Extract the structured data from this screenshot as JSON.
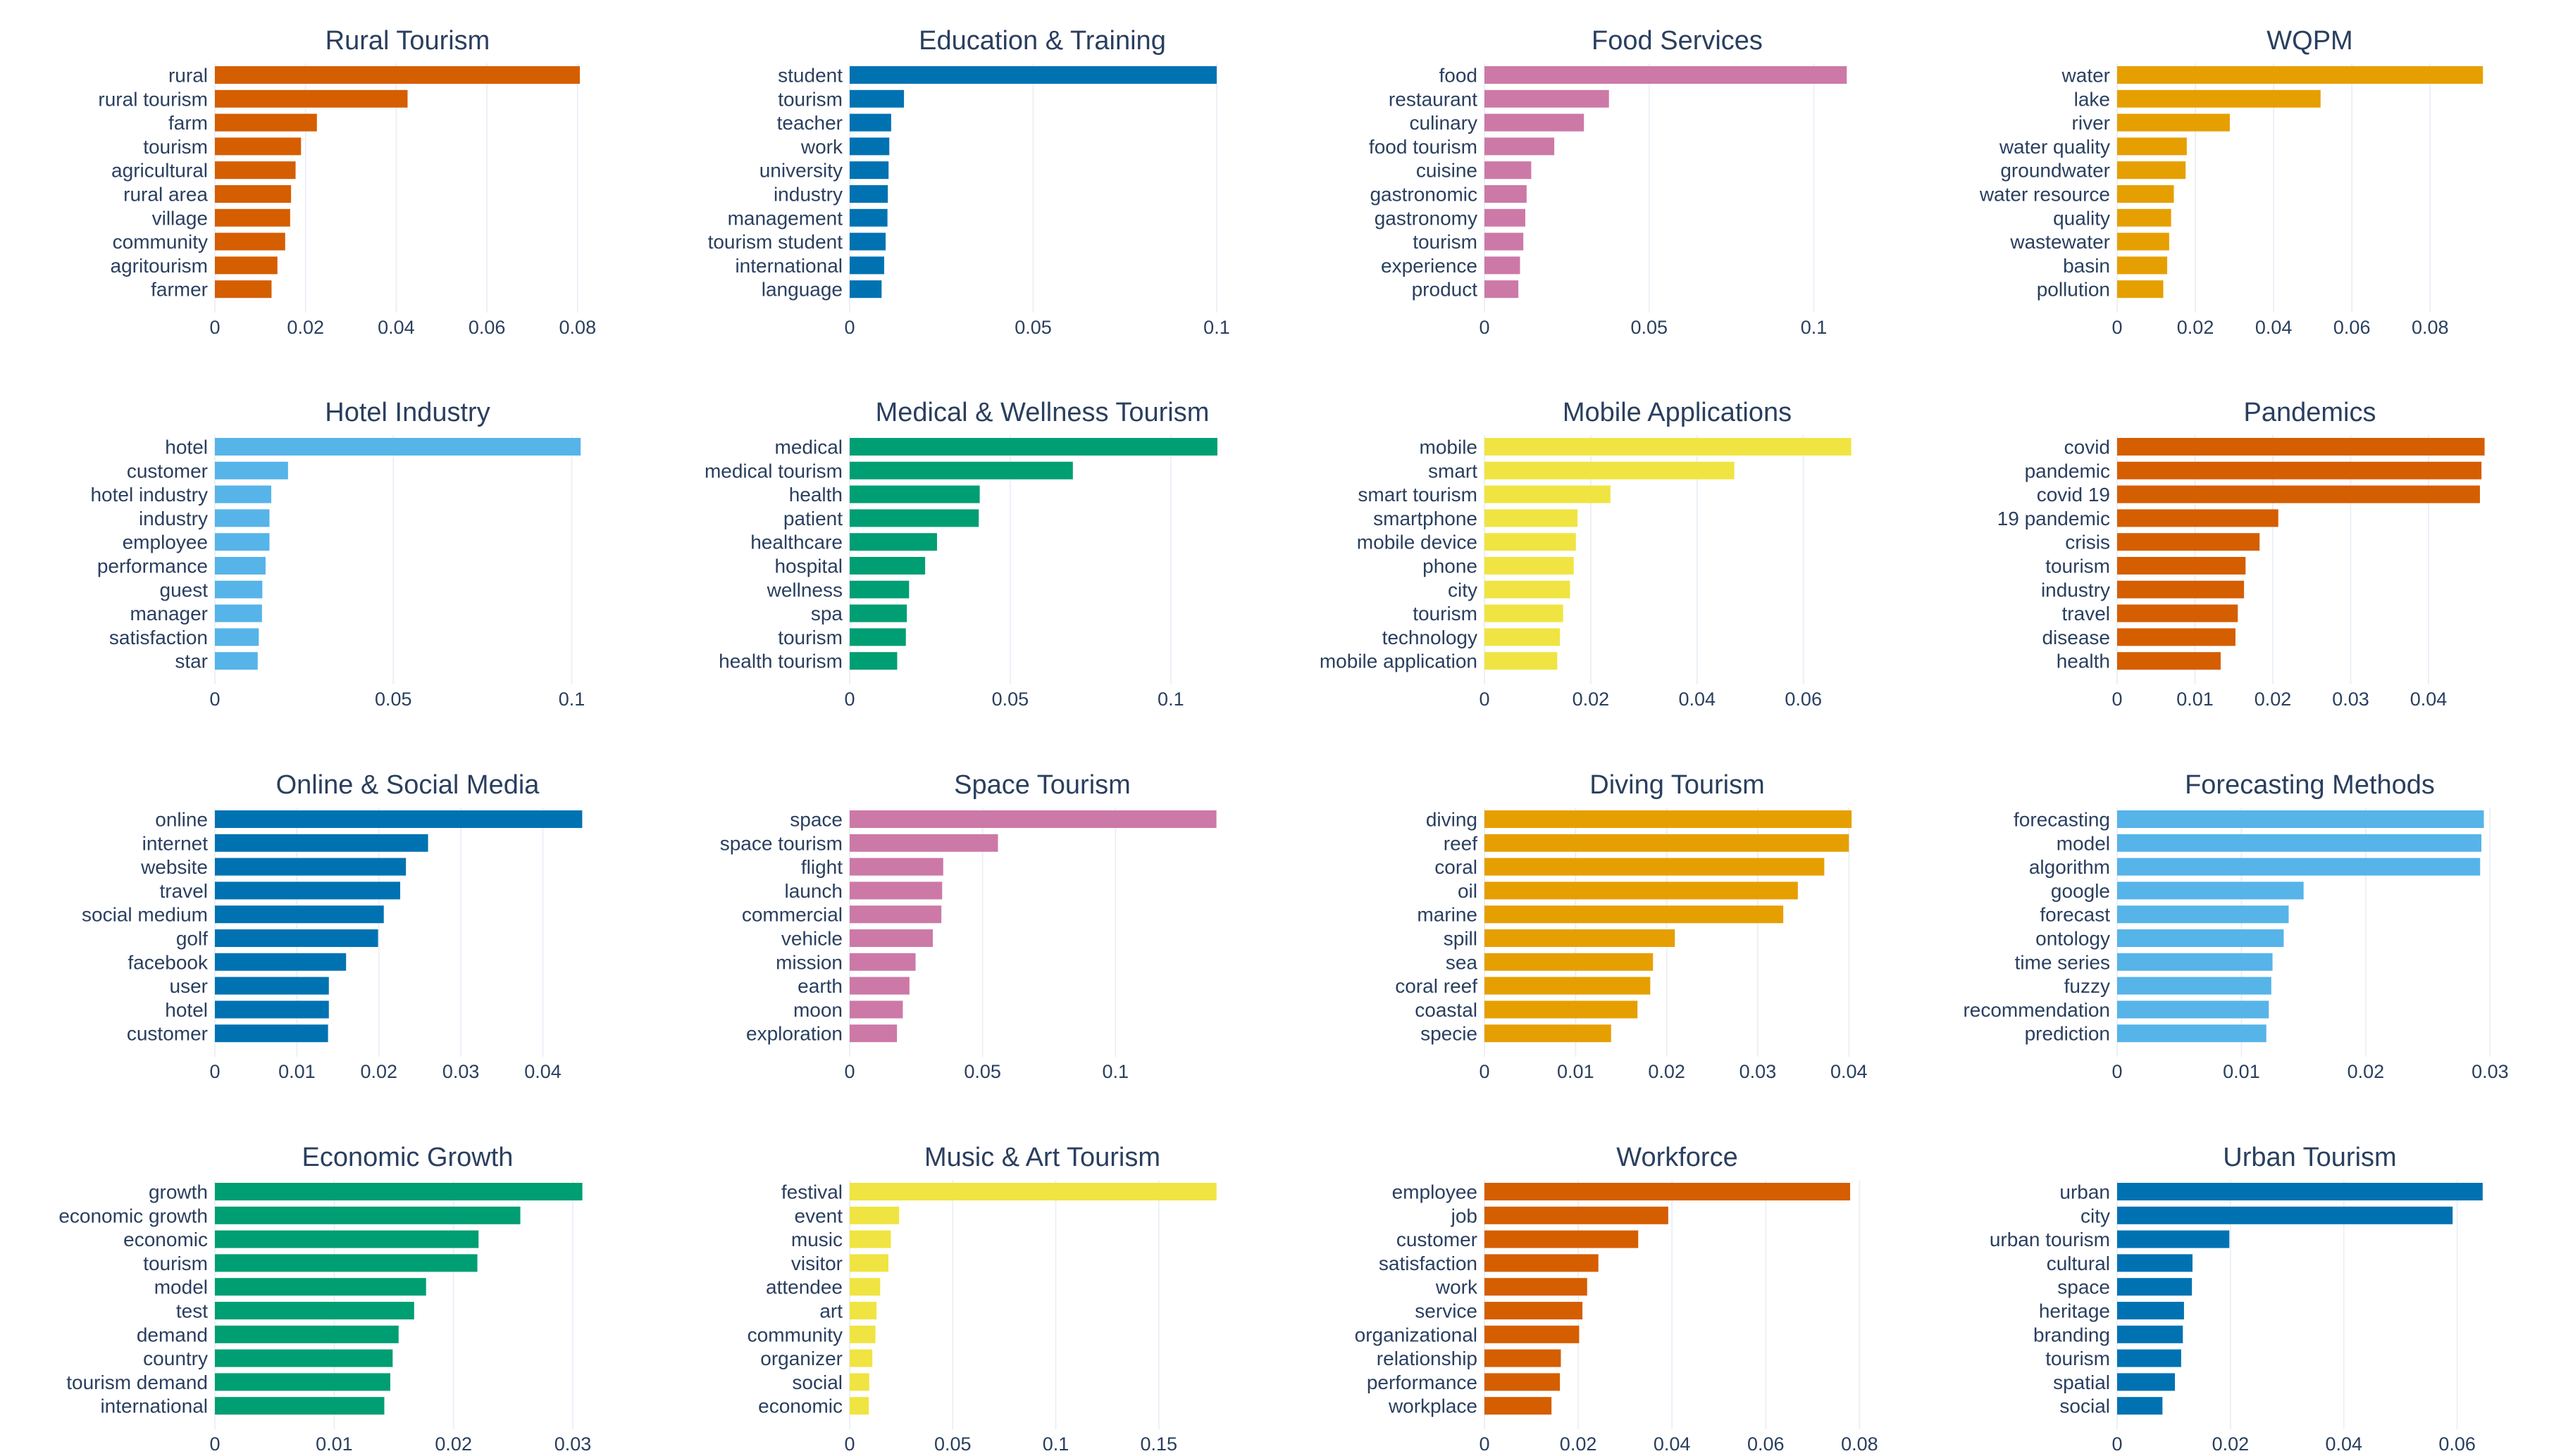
{
  "chart_data": [
    {
      "type": "bar",
      "title": "Rural Tourism",
      "color": "#d55e00",
      "categories": [
        "rural",
        "rural tourism",
        "farm",
        "tourism",
        "agricultural",
        "rural area",
        "village",
        "community",
        "agritourism",
        "farmer"
      ],
      "values": [
        0.0805,
        0.0425,
        0.0225,
        0.019,
        0.0178,
        0.0168,
        0.0166,
        0.0155,
        0.0138,
        0.0125
      ],
      "xlim": [
        0,
        0.085
      ],
      "ticks": [
        0,
        0.02,
        0.04,
        0.06,
        0.08
      ],
      "tick_labels": [
        "0",
        "0.02",
        "0.04",
        "0.06",
        "0.08"
      ]
    },
    {
      "type": "bar",
      "title": "Education & Training",
      "color": "#0072b2",
      "categories": [
        "student",
        "tourism",
        "teacher",
        "work",
        "university",
        "industry",
        "management",
        "tourism student",
        "international",
        "language"
      ],
      "values": [
        0.1,
        0.0148,
        0.0113,
        0.0108,
        0.0106,
        0.0104,
        0.0103,
        0.0098,
        0.0094,
        0.0087
      ],
      "xlim": [
        0,
        0.105
      ],
      "ticks": [
        0,
        0.05,
        0.1
      ],
      "tick_labels": [
        "0",
        "0.05",
        "0.1"
      ]
    },
    {
      "type": "bar",
      "title": "Food Services",
      "color": "#cc79a7",
      "categories": [
        "food",
        "restaurant",
        "culinary",
        "food tourism",
        "cuisine",
        "gastronomic",
        "gastronomy",
        "tourism",
        "experience",
        "product"
      ],
      "values": [
        0.11,
        0.0378,
        0.0302,
        0.0212,
        0.0142,
        0.0128,
        0.0124,
        0.0118,
        0.0108,
        0.0103
      ],
      "xlim": [
        0,
        0.117
      ],
      "ticks": [
        0,
        0.05,
        0.1
      ],
      "tick_labels": [
        "0",
        "0.05",
        "0.1"
      ]
    },
    {
      "type": "bar",
      "title": "WQPM",
      "color": "#e69f00",
      "categories": [
        "water",
        "lake",
        "river",
        "water quality",
        "groundwater",
        "water resource",
        "quality",
        "wastewater",
        "basin",
        "pollution"
      ],
      "values": [
        0.0935,
        0.052,
        0.0288,
        0.0178,
        0.0175,
        0.0145,
        0.0138,
        0.0133,
        0.0128,
        0.0118
      ],
      "xlim": [
        0,
        0.0985
      ],
      "ticks": [
        0,
        0.02,
        0.04,
        0.06,
        0.08
      ],
      "tick_labels": [
        "0",
        "0.02",
        "0.04",
        "0.06",
        "0.08"
      ]
    },
    {
      "type": "bar",
      "title": "Hotel Industry",
      "color": "#56b4e9",
      "categories": [
        "hotel",
        "customer",
        "hotel industry",
        "industry",
        "employee",
        "performance",
        "guest",
        "manager",
        "satisfaction",
        "star"
      ],
      "values": [
        0.1025,
        0.0205,
        0.0158,
        0.0153,
        0.0153,
        0.0142,
        0.0133,
        0.0132,
        0.0123,
        0.012
      ],
      "xlim": [
        0,
        0.108
      ],
      "ticks": [
        0,
        0.05,
        0.1
      ],
      "tick_labels": [
        "0",
        "0.05",
        "0.1"
      ]
    },
    {
      "type": "bar",
      "title": "Medical & Wellness Tourism",
      "color": "#009e73",
      "categories": [
        "medical",
        "medical tourism",
        "health",
        "patient",
        "healthcare",
        "hospital",
        "wellness",
        "spa",
        "tourism",
        "health tourism"
      ],
      "values": [
        0.1145,
        0.0695,
        0.0405,
        0.0402,
        0.0272,
        0.0235,
        0.0185,
        0.0178,
        0.0175,
        0.0148
      ],
      "xlim": [
        0,
        0.12
      ],
      "ticks": [
        0,
        0.05,
        0.1
      ],
      "tick_labels": [
        "0",
        "0.05",
        "0.1"
      ]
    },
    {
      "type": "bar",
      "title": "Mobile Applications",
      "color": "#f0e442",
      "categories": [
        "mobile",
        "smart",
        "smart tourism",
        "smartphone",
        "mobile device",
        "phone",
        "city",
        "tourism",
        "technology",
        "mobile application"
      ],
      "values": [
        0.069,
        0.047,
        0.0237,
        0.0175,
        0.0172,
        0.0168,
        0.0161,
        0.0148,
        0.0142,
        0.0137
      ],
      "xlim": [
        0,
        0.0725
      ],
      "ticks": [
        0,
        0.02,
        0.04,
        0.06
      ],
      "tick_labels": [
        "0",
        "0.02",
        "0.04",
        "0.06"
      ]
    },
    {
      "type": "bar",
      "title": "Pandemics",
      "color": "#d55e00",
      "categories": [
        "covid",
        "pandemic",
        "covid 19",
        "19 pandemic",
        "crisis",
        "tourism",
        "industry",
        "travel",
        "disease",
        "health"
      ],
      "values": [
        0.0472,
        0.0468,
        0.0466,
        0.0207,
        0.0183,
        0.0165,
        0.0163,
        0.0155,
        0.0152,
        0.0133
      ],
      "xlim": [
        0,
        0.0495
      ],
      "ticks": [
        0,
        0.01,
        0.02,
        0.03,
        0.04
      ],
      "tick_labels": [
        "0",
        "0.01",
        "0.02",
        "0.03",
        "0.04"
      ]
    },
    {
      "type": "bar",
      "title": "Online & Social Media",
      "color": "#0072b2",
      "categories": [
        "online",
        "internet",
        "website",
        "travel",
        "social medium",
        "golf",
        "facebook",
        "user",
        "hotel",
        "customer"
      ],
      "values": [
        0.0448,
        0.026,
        0.0233,
        0.0226,
        0.0206,
        0.0199,
        0.016,
        0.0139,
        0.0139,
        0.0138
      ],
      "xlim": [
        0,
        0.047
      ],
      "ticks": [
        0,
        0.01,
        0.02,
        0.03,
        0.04
      ],
      "tick_labels": [
        "0",
        "0.01",
        "0.02",
        "0.03",
        "0.04"
      ]
    },
    {
      "type": "bar",
      "title": "Space Tourism",
      "color": "#cc79a7",
      "categories": [
        "space",
        "space tourism",
        "flight",
        "launch",
        "commercial",
        "vehicle",
        "mission",
        "earth",
        "moon",
        "exploration"
      ],
      "values": [
        0.138,
        0.0558,
        0.0352,
        0.0348,
        0.0345,
        0.0313,
        0.0248,
        0.0225,
        0.02,
        0.0178
      ],
      "xlim": [
        0,
        0.145
      ],
      "ticks": [
        0,
        0.05,
        0.1
      ],
      "tick_labels": [
        "0",
        "0.05",
        "0.1"
      ]
    },
    {
      "type": "bar",
      "title": "Diving Tourism",
      "color": "#e69f00",
      "categories": [
        "diving",
        "reef",
        "coral",
        "oil",
        "marine",
        "spill",
        "sea",
        "coral reef",
        "coastal",
        "specie"
      ],
      "values": [
        0.0403,
        0.04,
        0.0373,
        0.0344,
        0.0328,
        0.0209,
        0.0185,
        0.0182,
        0.0168,
        0.0139
      ],
      "xlim": [
        0,
        0.0423
      ],
      "ticks": [
        0,
        0.01,
        0.02,
        0.03,
        0.04
      ],
      "tick_labels": [
        "0",
        "0.01",
        "0.02",
        "0.03",
        "0.04"
      ]
    },
    {
      "type": "bar",
      "title": "Forecasting Methods",
      "color": "#56b4e9",
      "categories": [
        "forecasting",
        "model",
        "algorithm",
        "google",
        "forecast",
        "ontology",
        "time series",
        "fuzzy",
        "recommendation",
        "prediction"
      ],
      "values": [
        0.0295,
        0.0293,
        0.0292,
        0.015,
        0.0138,
        0.0134,
        0.0125,
        0.0124,
        0.0122,
        0.012
      ],
      "xlim": [
        0,
        0.031
      ],
      "ticks": [
        0,
        0.01,
        0.02,
        0.03
      ],
      "tick_labels": [
        "0",
        "0.01",
        "0.02",
        "0.03"
      ]
    },
    {
      "type": "bar",
      "title": "Economic Growth",
      "color": "#009e73",
      "categories": [
        "growth",
        "economic growth",
        "economic",
        "tourism",
        "model",
        "test",
        "demand",
        "country",
        "tourism demand",
        "international"
      ],
      "values": [
        0.0308,
        0.0256,
        0.0221,
        0.022,
        0.0177,
        0.0167,
        0.0154,
        0.0149,
        0.0147,
        0.0142
      ],
      "xlim": [
        0,
        0.0323
      ],
      "ticks": [
        0,
        0.01,
        0.02,
        0.03
      ],
      "tick_labels": [
        "0",
        "0.01",
        "0.02",
        "0.03"
      ]
    },
    {
      "type": "bar",
      "title": "Music & Art Tourism",
      "color": "#f0e442",
      "categories": [
        "festival",
        "event",
        "music",
        "visitor",
        "attendee",
        "art",
        "community",
        "organizer",
        "social",
        "economic"
      ],
      "values": [
        0.178,
        0.024,
        0.02,
        0.0188,
        0.0148,
        0.013,
        0.0125,
        0.011,
        0.0095,
        0.0093
      ],
      "xlim": [
        0,
        0.187
      ],
      "ticks": [
        0,
        0.05,
        0.1,
        0.15
      ],
      "tick_labels": [
        "0",
        "0.05",
        "0.1",
        "0.15"
      ]
    },
    {
      "type": "bar",
      "title": "Workforce",
      "color": "#d55e00",
      "categories": [
        "employee",
        "job",
        "customer",
        "satisfaction",
        "work",
        "service",
        "organizational",
        "relationship",
        "performance",
        "workplace"
      ],
      "values": [
        0.078,
        0.0392,
        0.0328,
        0.0243,
        0.0219,
        0.0209,
        0.0202,
        0.0163,
        0.0161,
        0.0143
      ],
      "xlim": [
        0,
        0.0822
      ],
      "ticks": [
        0,
        0.02,
        0.04,
        0.06,
        0.08
      ],
      "tick_labels": [
        "0",
        "0.02",
        "0.04",
        "0.06",
        "0.08"
      ]
    },
    {
      "type": "bar",
      "title": "Urban Tourism",
      "color": "#0072b2",
      "categories": [
        "urban",
        "city",
        "urban tourism",
        "cultural",
        "space",
        "heritage",
        "branding",
        "tourism",
        "spatial",
        "social"
      ],
      "values": [
        0.0645,
        0.0592,
        0.0198,
        0.0133,
        0.0132,
        0.0118,
        0.0116,
        0.0113,
        0.0102,
        0.008
      ],
      "xlim": [
        0,
        0.068
      ],
      "ticks": [
        0,
        0.02,
        0.04,
        0.06
      ],
      "tick_labels": [
        "0",
        "0.02",
        "0.04",
        "0.06"
      ]
    }
  ]
}
